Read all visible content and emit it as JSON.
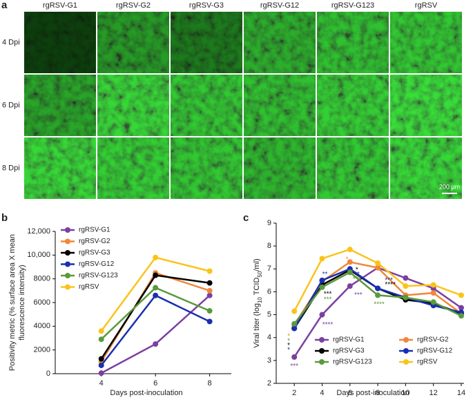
{
  "panel_a": {
    "label": "a",
    "columns": [
      "rgRSV-G1",
      "rgRSV-G2",
      "rgRSV-G3",
      "rgRSV-G12",
      "rgRSV-G123",
      "rgRSV"
    ],
    "rows": [
      "4 Dpi",
      "6 Dpi",
      "8 Dpi"
    ],
    "scale_bar": "200 μm"
  },
  "chart_data": [
    {
      "type": "line",
      "panel_label": "b",
      "xlabel": "Days post-inoculation",
      "ylabel": [
        "Positivity metric (% surface area X mean",
        "fluorescence intensity)"
      ],
      "x": [
        4,
        6,
        8
      ],
      "xlim": [
        2.3,
        8.8
      ],
      "xticks": [
        4,
        6,
        8
      ],
      "ylim": [
        0,
        12000
      ],
      "yticks": [
        0,
        2000,
        4000,
        6000,
        8000,
        {
          "value": 10000,
          "label": "10,000"
        },
        {
          "value": 12000,
          "label": "12,000"
        }
      ],
      "legend": "upper left",
      "series": [
        {
          "name": "rgRSV-G1",
          "color": "#7b3fa0",
          "values": [
            50,
            2500,
            6600
          ]
        },
        {
          "name": "rgRSV-G2",
          "color": "#f0883a",
          "values": [
            1000,
            8500,
            7000
          ]
        },
        {
          "name": "rgRSV-G3",
          "color": "#000000",
          "values": [
            1250,
            8300,
            7650
          ]
        },
        {
          "name": "rgRSV-G12",
          "color": "#1a2fb0",
          "values": [
            700,
            6600,
            4400
          ]
        },
        {
          "name": "rgRSV-G123",
          "color": "#5a9a3c",
          "values": [
            2900,
            7250,
            5300
          ]
        },
        {
          "name": "rgRSV",
          "color": "#fbc31a",
          "values": [
            3600,
            9800,
            8650
          ]
        }
      ]
    },
    {
      "type": "line",
      "panel_label": "c",
      "xlabel": "Days post-inoculation",
      "ylabel": [
        "Viral titer (log",
        "10",
        " TCID",
        "50",
        "/ml)"
      ],
      "x": [
        2,
        4,
        6,
        8,
        10,
        12,
        14
      ],
      "xlim": [
        0.7,
        14.2
      ],
      "xticks": [
        2,
        4,
        6,
        8,
        10,
        12,
        14
      ],
      "ylim": [
        2,
        9
      ],
      "yticks": [
        2,
        3,
        4,
        5,
        6,
        7,
        8,
        9
      ],
      "legend": "lower center",
      "series": [
        {
          "name": "rgRSV-G1",
          "color": "#7b3fa0",
          "values": [
            3.15,
            5.0,
            6.25,
            7.05,
            6.6,
            6.15,
            5.3
          ]
        },
        {
          "name": "rgRSV-G2",
          "color": "#f0883a",
          "values": [
            4.55,
            6.45,
            7.3,
            7.05,
            5.85,
            5.95,
            5.05
          ]
        },
        {
          "name": "rgRSV-G3",
          "color": "#000000",
          "values": [
            4.4,
            6.3,
            6.95,
            6.15,
            5.65,
            5.5,
            5.05
          ]
        },
        {
          "name": "rgRSV-G12",
          "color": "#1a2fb0",
          "values": [
            4.4,
            6.5,
            7.0,
            6.15,
            5.75,
            5.4,
            5.1
          ]
        },
        {
          "name": "rgRSV-G123",
          "color": "#5a9a3c",
          "values": [
            4.6,
            6.2,
            6.85,
            5.85,
            5.75,
            5.55,
            4.95
          ]
        },
        {
          "name": "rgRSV",
          "color": "#fbc31a",
          "values": [
            5.15,
            7.45,
            7.85,
            7.25,
            6.25,
            6.3,
            5.85
          ]
        }
      ],
      "annotations": [
        {
          "text": "***",
          "x": 2,
          "y": 2.75,
          "color": "#7b3fa0"
        },
        {
          "text": "*",
          "x": 1.6,
          "y": 4.05,
          "color": "#f0883a"
        },
        {
          "text": "*",
          "x": 1.6,
          "y": 3.85,
          "color": "#5a9a3c"
        },
        {
          "text": "*",
          "x": 1.6,
          "y": 3.65,
          "color": "#000000"
        },
        {
          "text": "*",
          "x": 1.6,
          "y": 3.45,
          "color": "#1a2fb0"
        },
        {
          "text": "**",
          "x": 4.2,
          "y": 6.75,
          "color": "#1a2fb0"
        },
        {
          "text": "***",
          "x": 4.4,
          "y": 5.9,
          "color": "#000000"
        },
        {
          "text": "***",
          "x": 4.4,
          "y": 5.65,
          "color": "#5a9a3c"
        },
        {
          "text": "****",
          "x": 4.4,
          "y": 4.55,
          "color": "#7b3fa0"
        },
        {
          "text": "*",
          "x": 5.8,
          "y": 7.4,
          "color": "#f0883a"
        },
        {
          "text": "*",
          "x": 6.5,
          "y": 6.95,
          "color": "#000000"
        },
        {
          "text": "**",
          "x": 6.5,
          "y": 6.75,
          "color": "#1a2fb0"
        },
        {
          "text": "***",
          "x": 6.5,
          "y": 6.55,
          "color": "#5a9a3c"
        },
        {
          "text": "***",
          "x": 6.6,
          "y": 5.85,
          "color": "#7b3fa0"
        },
        {
          "text": "***",
          "x": 8.8,
          "y": 6.5,
          "color": "#1a2fb0"
        },
        {
          "text": "****",
          "x": 8.9,
          "y": 6.3,
          "color": "#000000"
        },
        {
          "text": "****",
          "x": 8.1,
          "y": 5.45,
          "color": "#5a9a3c"
        }
      ]
    }
  ]
}
